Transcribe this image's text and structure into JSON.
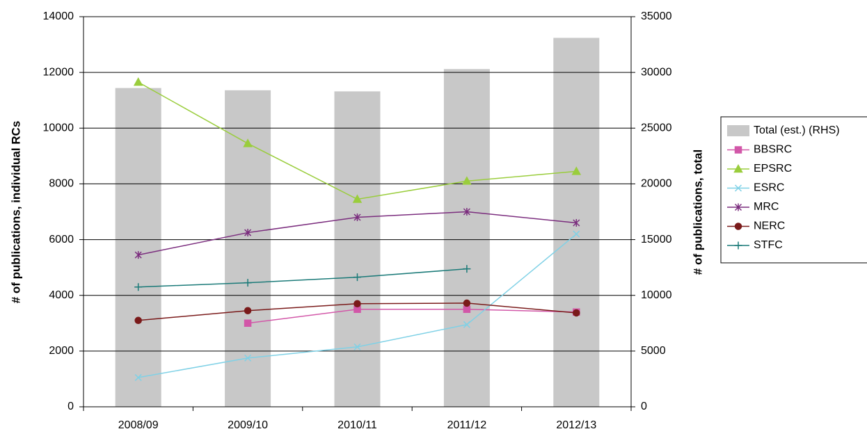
{
  "chart_data": {
    "type": "combo",
    "categories": [
      "2008/09",
      "2009/10",
      "2010/11",
      "2011/12",
      "2012/13"
    ],
    "ylabel": "# of publications, individual RCs",
    "y2label": "# of publications, total",
    "ylim": [
      0,
      14000
    ],
    "yticks": [
      0,
      2000,
      4000,
      6000,
      8000,
      10000,
      12000,
      14000
    ],
    "y2lim": [
      0,
      35000
    ],
    "y2ticks": [
      0,
      5000,
      10000,
      15000,
      20000,
      25000,
      30000,
      35000
    ],
    "grid": true,
    "series": [
      {
        "name": "Total (est.) (RHS)",
        "type": "bar",
        "axis": "y2",
        "color": "#c8c8c8",
        "values": [
          28600,
          28400,
          28300,
          30300,
          33100
        ]
      },
      {
        "name": "BBSRC",
        "type": "line",
        "marker": "square",
        "color": "#d257a8",
        "values": [
          null,
          3000,
          3500,
          3500,
          3400
        ]
      },
      {
        "name": "EPSRC",
        "type": "line",
        "marker": "triangle",
        "color": "#9acd3c",
        "values": [
          11650,
          9450,
          7450,
          8100,
          8450
        ]
      },
      {
        "name": "ESRC",
        "type": "line",
        "marker": "x",
        "color": "#7fd1e6",
        "values": [
          1050,
          1750,
          2150,
          2950,
          6200
        ]
      },
      {
        "name": "MRC",
        "type": "line",
        "marker": "star",
        "color": "#7b2d7e",
        "values": [
          5450,
          6250,
          6800,
          7000,
          6600
        ]
      },
      {
        "name": "NERC",
        "type": "line",
        "marker": "circle",
        "color": "#7a1a1a",
        "values": [
          3100,
          3450,
          3700,
          3720,
          3370
        ]
      },
      {
        "name": "STFC",
        "type": "line",
        "marker": "plus",
        "color": "#1a7a78",
        "values": [
          4300,
          4450,
          4650,
          4950,
          null
        ]
      }
    ]
  }
}
